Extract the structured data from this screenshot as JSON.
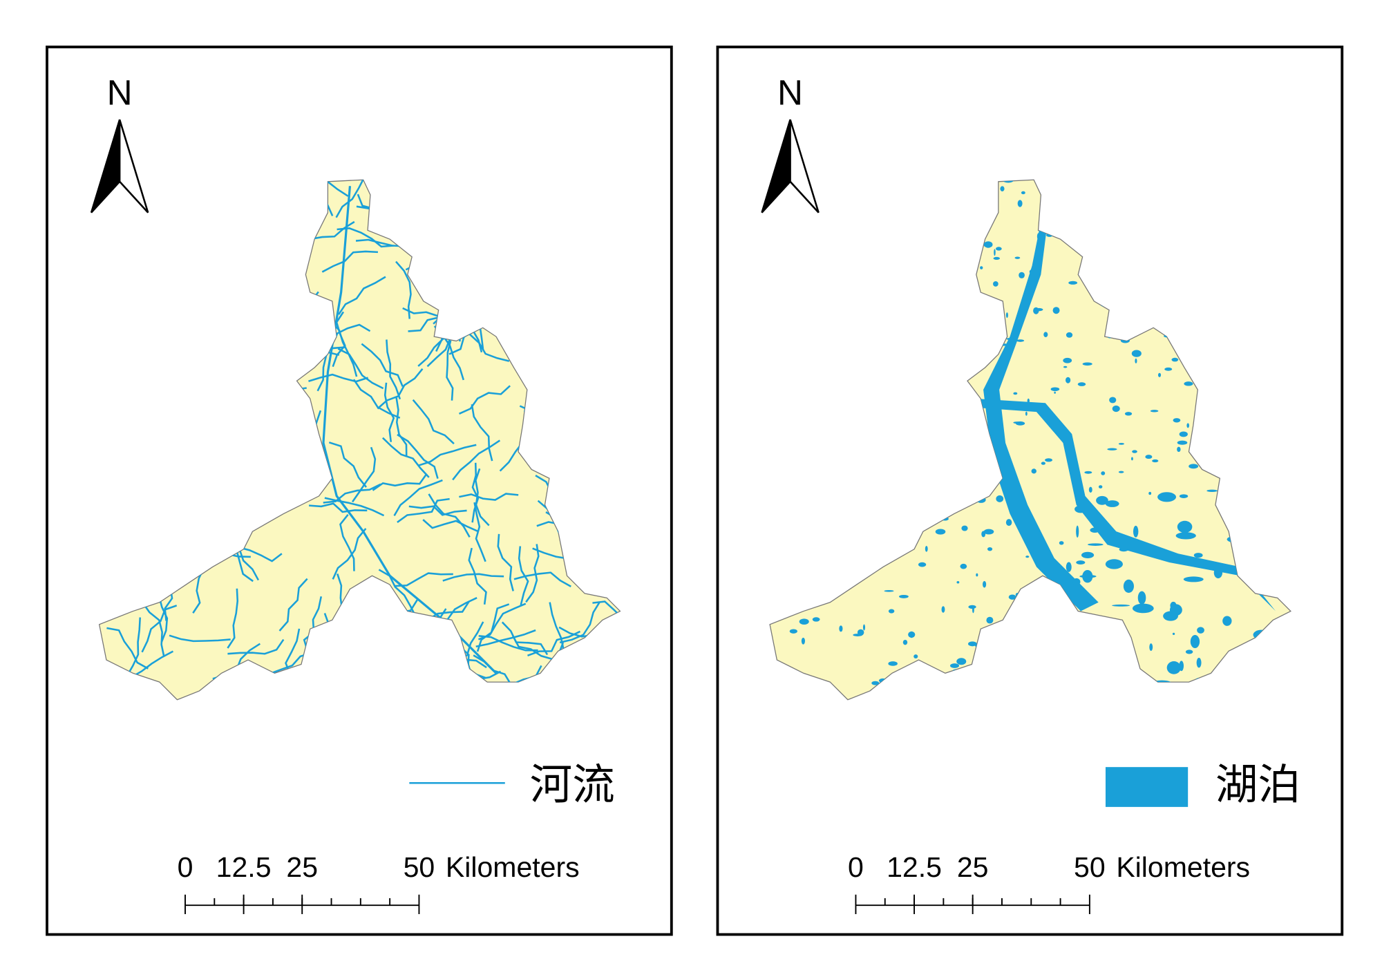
{
  "panels": [
    {
      "north": "N",
      "legend": {
        "label": "河流"
      },
      "scale": {
        "ticks": [
          0,
          12.5,
          25,
          50
        ],
        "unit": "Kilometers"
      }
    },
    {
      "north": "N",
      "legend": {
        "label": "湖泊"
      },
      "scale": {
        "ticks": [
          0,
          12.5,
          25,
          50
        ],
        "unit": "Kilometers"
      }
    }
  ]
}
